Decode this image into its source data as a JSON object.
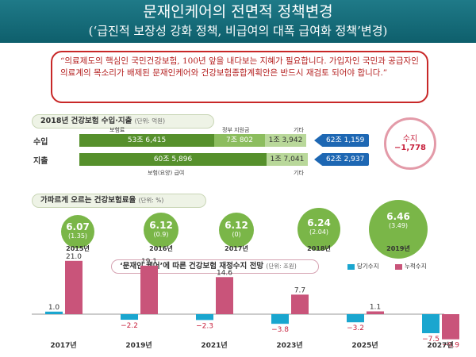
{
  "title": {
    "main": "문재인케어의 전면적 정책변경",
    "sub": "(‘급진적 보장성 강화 정책, 비급여의 대폭 급여화 정책’변경)"
  },
  "quote": "“의료제도의 핵심인 국민건강보험, 100년 앞을 내다보는 지혜가 필요합니다. 가입자인 국민과 공급자인 의료계의 목소리가 배제된 문재인케어와 건강보험종합계획안은 반드시 재검토 되어야 합니다.”",
  "colors": {
    "title_bg": "#0e5f6c",
    "accent_red": "#c82828",
    "bar_green": "#56902c",
    "tag_blue": "#1d67b3",
    "annual_bar": "#1aa6cf",
    "cumulative_bar": "#c9547a"
  },
  "revenue_section": {
    "header": "2018년 건강보험 수입·지출",
    "unit": "(단위: 억원)",
    "income": {
      "label": "수입",
      "parts": [
        "53조 6,415",
        "7조 802",
        "1조 3,942"
      ],
      "total": "62조 1,159",
      "labels": {
        "premium": "보험료",
        "gov": "정부 지원금",
        "other": "기타"
      }
    },
    "expense": {
      "label": "지출",
      "parts": [
        "60조 5,896",
        "1조 7,041"
      ],
      "total": "62조 2,937",
      "labels": {
        "benefit": "보험(요양) 급여",
        "other": "기타"
      }
    },
    "balance": {
      "label": "수지",
      "value": "−1,778"
    }
  },
  "rate_section": {
    "header": "가파르게 오르는 건강보험료율",
    "unit": "(단위: %)",
    "items": [
      {
        "rate": "6.07",
        "change": "(1.35)",
        "year": "2015년"
      },
      {
        "rate": "6.12",
        "change": "(0.9)",
        "year": "2016년"
      },
      {
        "rate": "6.12",
        "change": "(0)",
        "year": "2017년"
      },
      {
        "rate": "6.24",
        "change": "(2.04)",
        "year": "2018년"
      },
      {
        "rate": "6.46",
        "change": "(3.49)",
        "year": "2019년"
      }
    ]
  },
  "chart_data": {
    "type": "bar",
    "title": "‘문재인 케어’에 따른 건강보험 재정수지 전망",
    "unit": "(단위: 조원)",
    "categories": [
      "2017년",
      "2019년",
      "2021년",
      "2023년",
      "2025년",
      "2027년"
    ],
    "series": [
      {
        "name": "당기수지",
        "values": [
          1.0,
          -2.2,
          -2.3,
          -3.8,
          -3.2,
          -7.5
        ]
      },
      {
        "name": "누적수지",
        "values": [
          21.0,
          19.1,
          14.6,
          7.7,
          1.1,
          -9.9
        ]
      }
    ],
    "value_labels": {
      "annual": [
        "1.0",
        "−2.2",
        "−2.3",
        "−3.8",
        "−3.2",
        "−7.5"
      ],
      "cumulative": [
        "21.0",
        "19.1",
        "14.6",
        "7.7",
        "1.1",
        "−9.9"
      ]
    },
    "ylim": [
      -10,
      22
    ],
    "legend_position": "top-right"
  }
}
